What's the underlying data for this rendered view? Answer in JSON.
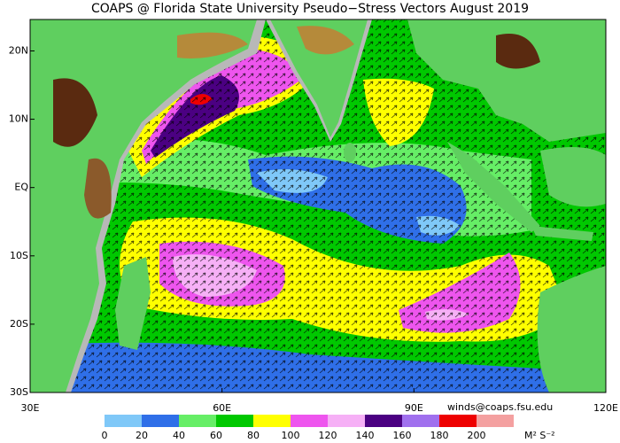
{
  "title": "COAPS @ Florida State University Pseudo−Stress Vectors August 2019",
  "map": {
    "lonlim": [
      30,
      120
    ],
    "latlim": [
      -30,
      24.6
    ],
    "lon_ticks": [
      {
        "value": 30,
        "label": "30E"
      },
      {
        "value": 60,
        "label": "60E"
      },
      {
        "value": 90,
        "label": "90E"
      },
      {
        "value": 120,
        "label": "120E"
      }
    ],
    "lat_ticks": [
      {
        "value": 20,
        "label": "20N"
      },
      {
        "value": 10,
        "label": "10N"
      },
      {
        "value": 0,
        "label": "EQ"
      },
      {
        "value": -10,
        "label": "10S"
      },
      {
        "value": -20,
        "label": "20S"
      },
      {
        "value": -30,
        "label": "30S"
      }
    ]
  },
  "credit": "winds@coaps.fsu.edu",
  "colorbar": {
    "ticks": [
      0,
      20,
      40,
      60,
      80,
      100,
      120,
      140,
      160,
      180,
      200
    ],
    "colors": [
      "#7fc8f8",
      "#2f6fe8",
      "#66ee66",
      "#00c800",
      "#ffff00",
      "#ee55ee",
      "#f6b0f6",
      "#4b0082",
      "#a070ee",
      "#ee0000",
      "#f4a0a0"
    ],
    "unit": "M² S⁻²"
  }
}
